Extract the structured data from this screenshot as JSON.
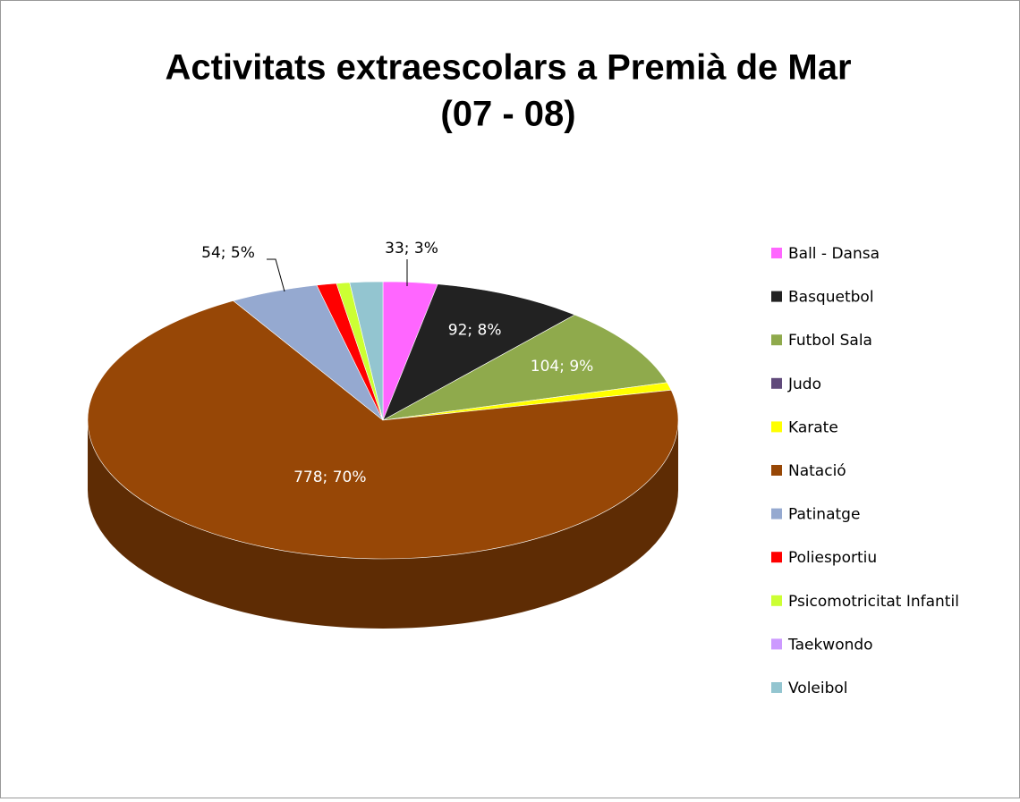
{
  "chart_data": {
    "type": "pie3d",
    "title": [
      "Activitats extraescolars a Premià de Mar",
      "(07 - 08)"
    ],
    "categories": [
      "Ball - Dansa",
      "Basquetbol",
      "Futbol Sala",
      "Judo",
      "Karate",
      "Natació",
      "Patinatge",
      "Poliesportiu",
      "Psicomotricitat Infantil",
      "Taekwondo",
      "Voleibol"
    ],
    "values": [
      33,
      92,
      104,
      0,
      10,
      778,
      54,
      12,
      8,
      0,
      20
    ],
    "value_labels": [
      "33; 3%",
      "92; 8%",
      "104; 9%",
      null,
      null,
      "778; 70%",
      "54; 5%",
      null,
      null,
      null,
      null
    ],
    "colors": [
      "#ff66ff",
      "#222222",
      "#8faa4c",
      "#604a7b",
      "#ffff00",
      "#974706",
      "#95a9d0",
      "#ff0000",
      "#ccff33",
      "#cc99ff",
      "#93c5d0"
    ],
    "legend": "right"
  }
}
